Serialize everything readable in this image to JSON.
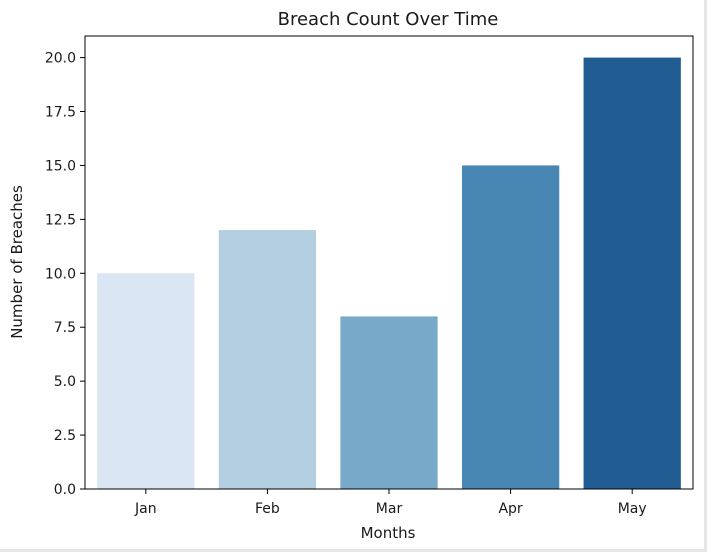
{
  "chart_data": {
    "type": "bar",
    "title": "Breach Count Over Time",
    "xlabel": "Months",
    "ylabel": "Number of Breaches",
    "categories": [
      "Jan",
      "Feb",
      "Mar",
      "Apr",
      "May"
    ],
    "values": [
      10,
      12,
      8,
      15,
      20
    ],
    "colors": [
      "#dae6f3",
      "#b3cde1",
      "#77a9c9",
      "#4886b4",
      "#215d93"
    ],
    "ylim": [
      0,
      21
    ],
    "yticks": [
      "0.0",
      "2.5",
      "5.0",
      "7.5",
      "10.0",
      "12.5",
      "15.0",
      "17.5",
      "20.0"
    ],
    "grid": false,
    "legend": "none"
  }
}
